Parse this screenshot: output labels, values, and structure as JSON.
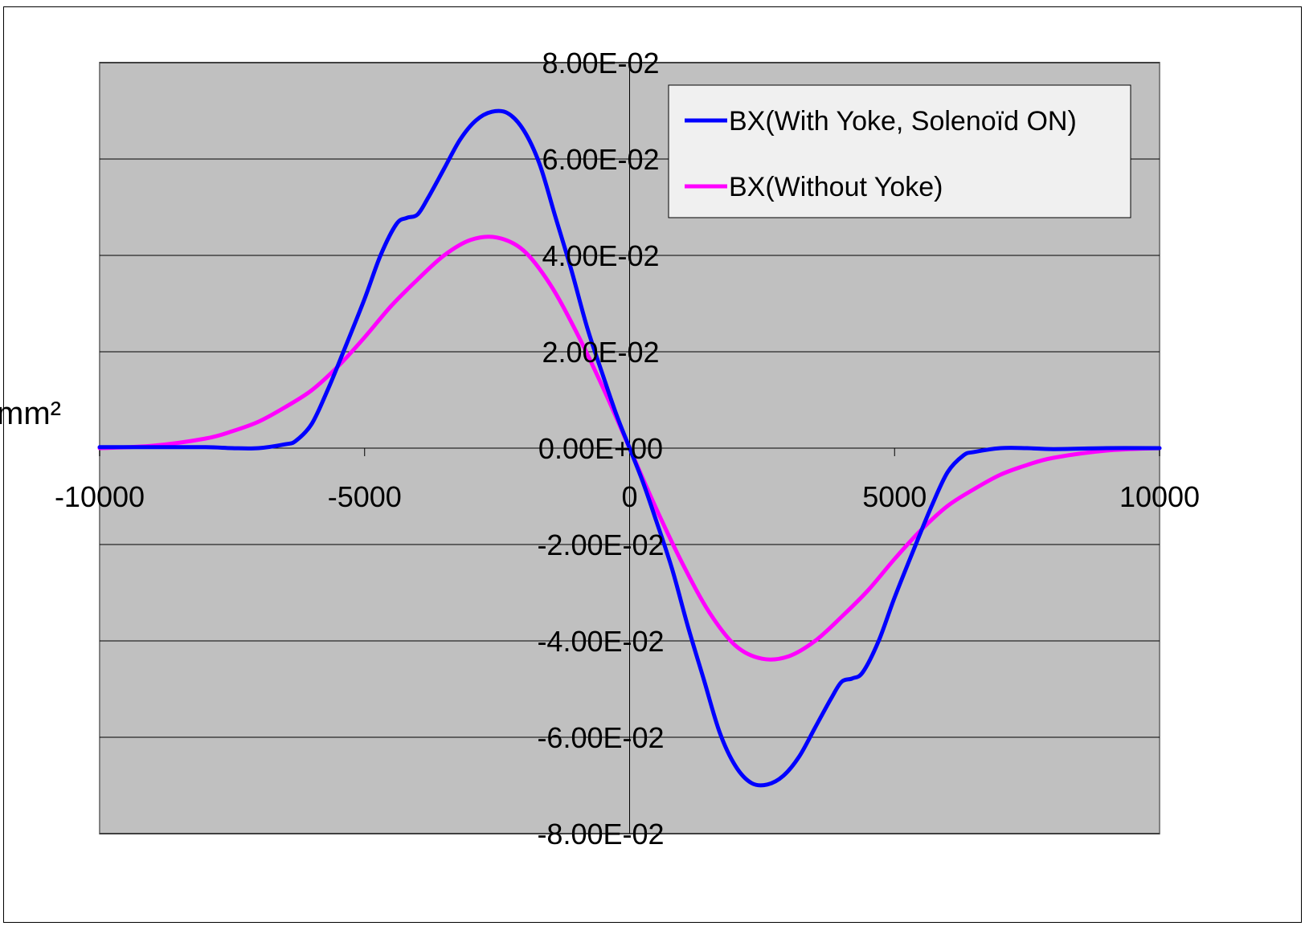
{
  "chart_data": {
    "type": "line",
    "title": "",
    "xlabel": "",
    "ylabel": "mm²",
    "xlim": [
      -10000,
      10000
    ],
    "ylim": [
      -0.08,
      0.08
    ],
    "x_ticks": [
      -10000,
      -5000,
      0,
      5000,
      10000
    ],
    "x_tick_labels": [
      "-10000",
      "-5000",
      "0",
      "5000",
      "10000"
    ],
    "y_ticks": [
      0.08,
      0.06,
      0.04,
      0.02,
      0,
      -0.02,
      -0.04,
      -0.06,
      -0.08
    ],
    "y_tick_labels": [
      "8.00E-02",
      "6.00E-02",
      "4.00E-02",
      "2.00E-02",
      "0.00E+00",
      "-2.00E-02",
      "-4.00E-02",
      "-6.00E-02",
      "-8.00E-02"
    ],
    "grid": "horizontal",
    "legend_position": "top-right",
    "plot_background": "#c0c0c0",
    "series": [
      {
        "name": "BX(With Yoke, Solenoïd ON)",
        "color": "#0000ff",
        "points": [
          [
            -10000,
            0.0002
          ],
          [
            -9000,
            0.0002
          ],
          [
            -8000,
            0.0002
          ],
          [
            -7500,
            0.0
          ],
          [
            -7000,
            0.0
          ],
          [
            -6500,
            0.0008
          ],
          [
            -6300,
            0.0015
          ],
          [
            -6000,
            0.005
          ],
          [
            -5700,
            0.012
          ],
          [
            -5400,
            0.02
          ],
          [
            -5000,
            0.031
          ],
          [
            -4700,
            0.04
          ],
          [
            -4400,
            0.0465
          ],
          [
            -4200,
            0.0478
          ],
          [
            -4000,
            0.0485
          ],
          [
            -3800,
            0.052
          ],
          [
            -3500,
            0.058
          ],
          [
            -3200,
            0.064
          ],
          [
            -2900,
            0.068
          ],
          [
            -2600,
            0.0698
          ],
          [
            -2300,
            0.0695
          ],
          [
            -2000,
            0.066
          ],
          [
            -1700,
            0.059
          ],
          [
            -1400,
            0.048
          ],
          [
            -1100,
            0.037
          ],
          [
            -800,
            0.025
          ],
          [
            -500,
            0.015
          ],
          [
            -250,
            0.007
          ],
          [
            0,
            0.0
          ],
          [
            250,
            -0.007
          ],
          [
            500,
            -0.015
          ],
          [
            800,
            -0.025
          ],
          [
            1100,
            -0.037
          ],
          [
            1400,
            -0.048
          ],
          [
            1700,
            -0.059
          ],
          [
            2000,
            -0.066
          ],
          [
            2300,
            -0.0695
          ],
          [
            2600,
            -0.0698
          ],
          [
            2900,
            -0.068
          ],
          [
            3200,
            -0.064
          ],
          [
            3500,
            -0.058
          ],
          [
            3800,
            -0.052
          ],
          [
            4000,
            -0.0485
          ],
          [
            4200,
            -0.0478
          ],
          [
            4400,
            -0.0465
          ],
          [
            4700,
            -0.04
          ],
          [
            5000,
            -0.031
          ],
          [
            5400,
            -0.02
          ],
          [
            5700,
            -0.012
          ],
          [
            6000,
            -0.005
          ],
          [
            6300,
            -0.0015
          ],
          [
            6500,
            -0.0008
          ],
          [
            7000,
            0.0
          ],
          [
            7500,
            0.0
          ],
          [
            8000,
            -0.0002
          ],
          [
            9000,
            0.0
          ],
          [
            10000,
            0.0
          ]
        ]
      },
      {
        "name": "BX(Without Yoke)",
        "color": "#ff00ff",
        "points": [
          [
            -10000,
            0.0
          ],
          [
            -9000,
            0.0005
          ],
          [
            -8000,
            0.002
          ],
          [
            -7500,
            0.0035
          ],
          [
            -7000,
            0.0055
          ],
          [
            -6500,
            0.0085
          ],
          [
            -6000,
            0.012
          ],
          [
            -5500,
            0.017
          ],
          [
            -5000,
            0.023
          ],
          [
            -4500,
            0.0295
          ],
          [
            -4000,
            0.035
          ],
          [
            -3500,
            0.04
          ],
          [
            -3000,
            0.0432
          ],
          [
            -2500,
            0.0437
          ],
          [
            -2000,
            0.041
          ],
          [
            -1500,
            0.034
          ],
          [
            -1000,
            0.024
          ],
          [
            -500,
            0.0125
          ],
          [
            0,
            0.0
          ],
          [
            500,
            -0.0125
          ],
          [
            1000,
            -0.024
          ],
          [
            1500,
            -0.034
          ],
          [
            2000,
            -0.041
          ],
          [
            2500,
            -0.0437
          ],
          [
            3000,
            -0.0432
          ],
          [
            3500,
            -0.04
          ],
          [
            4000,
            -0.035
          ],
          [
            4500,
            -0.0295
          ],
          [
            5000,
            -0.023
          ],
          [
            5500,
            -0.017
          ],
          [
            6000,
            -0.012
          ],
          [
            6500,
            -0.0085
          ],
          [
            7000,
            -0.0055
          ],
          [
            7500,
            -0.0035
          ],
          [
            8000,
            -0.002
          ],
          [
            9000,
            -0.0005
          ],
          [
            10000,
            0.0
          ]
        ]
      }
    ]
  }
}
